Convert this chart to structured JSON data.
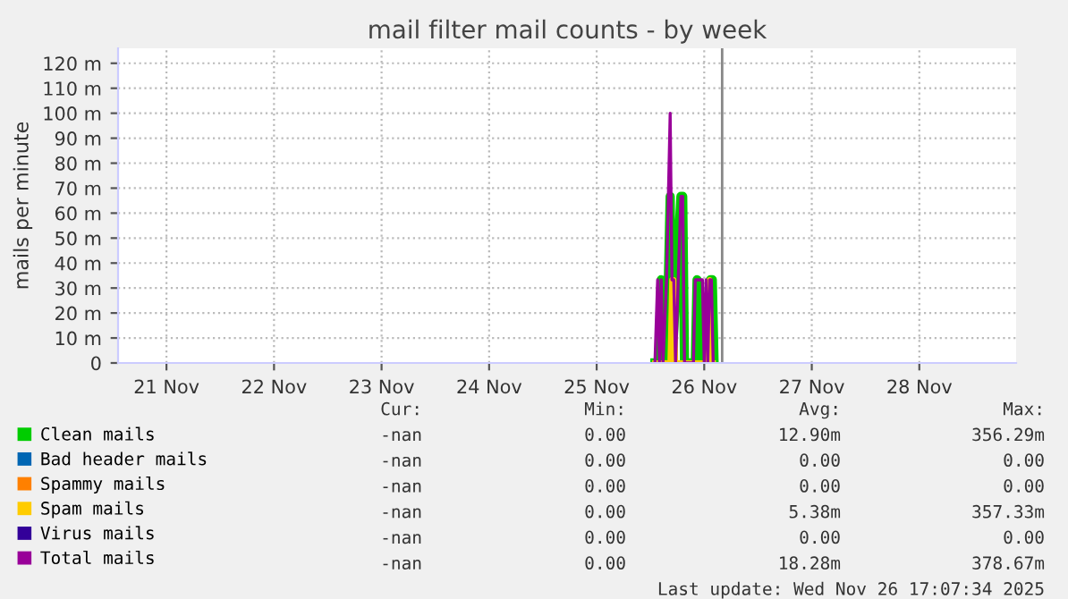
{
  "chart_data": {
    "type": "line",
    "title": "mail filter mail counts - by week",
    "ylabel": "mails per minute",
    "xlim": [
      "2025-11-21T01:12",
      "2025-11-29T09:36"
    ],
    "xticks": [
      {
        "value": "2025-11-21T12:00",
        "label": "21 Nov"
      },
      {
        "value": "2025-11-22T12:00",
        "label": "22 Nov"
      },
      {
        "value": "2025-11-23T12:00",
        "label": "23 Nov"
      },
      {
        "value": "2025-11-24T12:00",
        "label": "24 Nov"
      },
      {
        "value": "2025-11-25T12:00",
        "label": "25 Nov"
      },
      {
        "value": "2025-11-26T12:00",
        "label": "26 Nov"
      },
      {
        "value": "2025-11-27T12:00",
        "label": "27 Nov"
      },
      {
        "value": "2025-11-28T12:00",
        "label": "28 Nov"
      }
    ],
    "ylim": [
      0,
      126
    ],
    "yticks": [
      0,
      {
        "value": 10,
        "label": "10 m"
      },
      {
        "value": 20,
        "label": "20 m"
      },
      {
        "value": 30,
        "label": "30 m"
      },
      {
        "value": 40,
        "label": "40 m"
      },
      {
        "value": 50,
        "label": "50 m"
      },
      {
        "value": 60,
        "label": "60 m"
      },
      {
        "value": 70,
        "label": "70 m"
      },
      {
        "value": 80,
        "label": "80 m"
      },
      {
        "value": 90,
        "label": "90 m"
      },
      {
        "value": 100,
        "label": "100 m"
      },
      {
        "value": 110,
        "label": "110 m"
      },
      {
        "value": 120,
        "label": "120 m"
      }
    ],
    "grid": true,
    "legend": "bottom",
    "line_style": "solid",
    "series": [
      {
        "name": "Clean mails",
        "color": "#00cc00",
        "x": [
          "2025-11-26T01:00",
          "2025-11-26T02:00",
          "2025-11-26T02:24",
          "2025-11-26T02:48",
          "2025-11-26T03:36",
          "2025-11-26T04:24",
          "2025-11-26T04:48",
          "2025-11-26T06:48",
          "2025-11-26T07:12",
          "2025-11-26T07:36",
          "2025-11-26T10:00",
          "2025-11-26T10:24",
          "2025-11-26T10:48",
          "2025-11-26T12:48",
          "2025-11-26T13:24",
          "2025-11-26T13:48",
          "2025-11-26T14:12"
        ],
        "values": [
          0,
          0,
          33.3,
          0,
          0,
          66.7,
          0,
          66.7,
          66.7,
          0,
          0,
          33.3,
          0,
          0,
          33.3,
          33.3,
          0
        ]
      },
      {
        "name": "Bad header mails",
        "color": "#0066b3"
      },
      {
        "name": "Spammy mails",
        "color": "#ff8000"
      },
      {
        "name": "Spam mails",
        "color": "#ffcc00",
        "x": [
          "2025-11-26T01:00",
          "2025-11-26T04:24",
          "2025-11-26T04:48",
          "2025-11-26T05:12",
          "2025-11-26T05:36",
          "2025-11-26T12:48",
          "2025-11-26T13:12",
          "2025-11-26T13:36",
          "2025-11-26T14:00"
        ],
        "values": [
          0,
          0,
          33.3,
          33.3,
          0,
          0,
          33.3,
          0,
          0
        ]
      },
      {
        "name": "Virus mails",
        "color": "#330099"
      },
      {
        "name": "Total mails",
        "color": "#990099",
        "x": [
          "2025-11-26T01:00",
          "2025-11-26T01:36",
          "2025-11-26T02:00",
          "2025-11-26T02:24",
          "2025-11-26T02:48",
          "2025-11-26T03:36",
          "2025-11-26T04:24",
          "2025-11-26T04:48",
          "2025-11-26T05:12",
          "2025-11-26T05:36",
          "2025-11-26T06:48",
          "2025-11-26T07:12",
          "2025-11-26T07:36",
          "2025-11-26T09:36",
          "2025-11-26T10:00",
          "2025-11-26T10:24",
          "2025-11-26T11:36",
          "2025-11-26T12:00",
          "2025-11-26T12:24",
          "2025-11-26T12:48",
          "2025-11-26T13:12",
          "2025-11-26T13:36",
          "2025-11-26T14:00"
        ],
        "values": [
          0,
          33.3,
          0,
          33.3,
          0,
          33.3,
          100,
          33.3,
          33.3,
          0,
          66.7,
          66.7,
          0,
          0,
          33.3,
          33.3,
          33.3,
          0,
          33.3,
          0,
          33.3,
          33.3,
          0
        ]
      }
    ],
    "ref_lines": [
      {
        "axis": "x",
        "value": "2025-11-26T16:00",
        "color": "#888888"
      }
    ],
    "annotations": [
      "Cur:",
      "Min:",
      "Avg:",
      "Max:",
      "-nan",
      "0.00",
      "12.90m",
      "356.29m",
      "-nan",
      "0.00",
      "0.00",
      "0.00",
      "-nan",
      "0.00",
      "0.00",
      "0.00",
      "-nan",
      "0.00",
      "5.38m",
      "357.33m",
      "-nan",
      "0.00",
      "0.00",
      "0.00",
      "-nan",
      "0.00",
      "18.28m",
      "378.67m",
      "Last update: Wed Nov 26 17:07:34 2025"
    ]
  }
}
